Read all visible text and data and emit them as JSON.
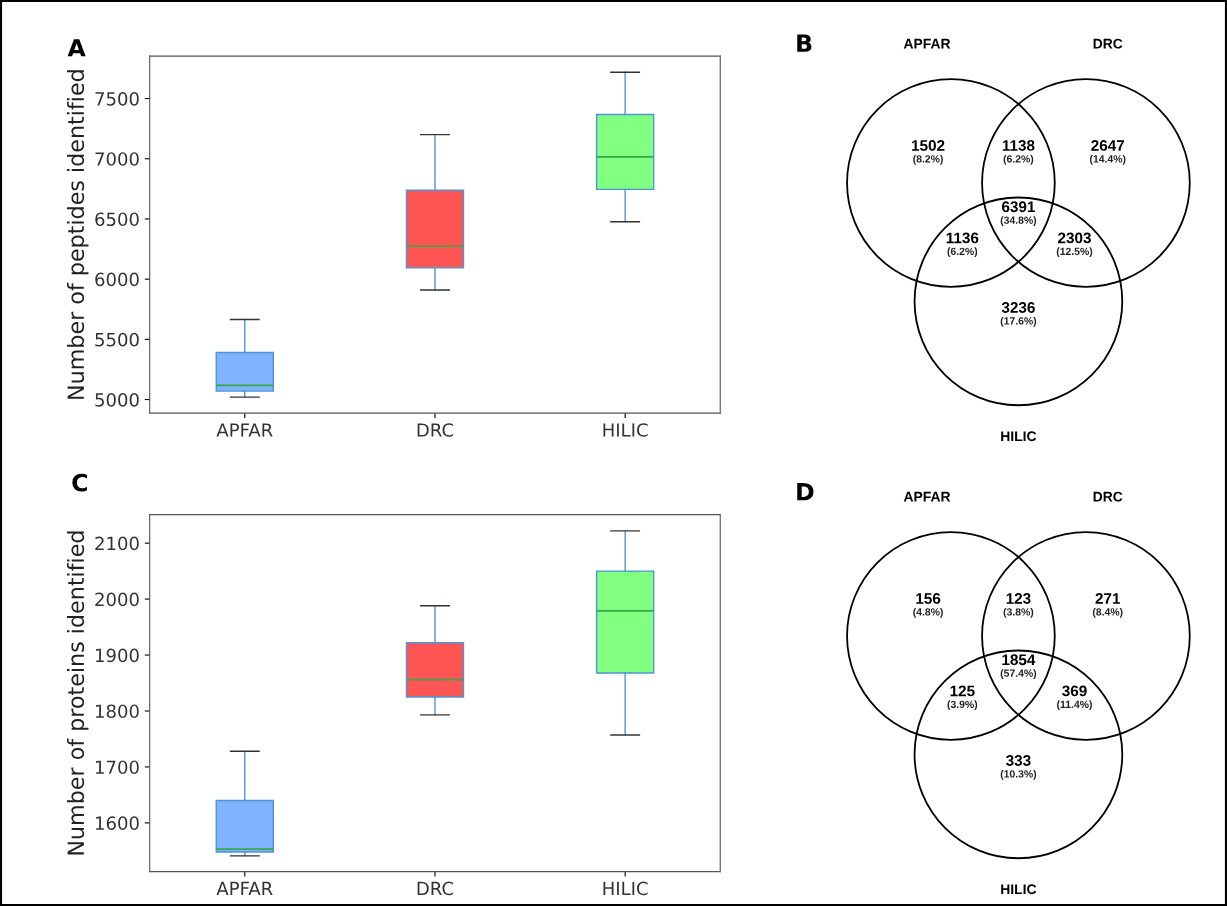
{
  "chart_data": [
    {
      "type": "box",
      "title": "A",
      "ylabel": "Number of peptides identified",
      "categories": [
        "APFAR",
        "DRC",
        "HILIC"
      ],
      "colors": [
        "#7fb2ff",
        "#ff5555",
        "#80ff80"
      ],
      "boxes": [
        {
          "low": 5020,
          "q1": 5070,
          "median": 5117,
          "q3": 5391,
          "high": 5665
        },
        {
          "low": 5910,
          "q1": 6094,
          "median": 6273,
          "q3": 6738,
          "high": 7200
        },
        {
          "low": 6477,
          "q1": 6746,
          "median": 7016,
          "q3": 7367,
          "high": 7719
        }
      ],
      "ylim": [
        4887,
        7852
      ],
      "yticks": [
        5000,
        5500,
        6000,
        6500,
        7000,
        7500
      ],
      "grid": false
    },
    {
      "type": "other",
      "title": "B",
      "annotations": [
        "APFAR",
        "DRC",
        "HILIC",
        "1502",
        "1138",
        "2647",
        "1136",
        "6391",
        "2303",
        "3236",
        "(8.2%)",
        "(6.2%)",
        "(14.4%)",
        "(6.2%)",
        "(34.8%)",
        "(12.5%)",
        "(17.6%)"
      ]
    },
    {
      "type": "box",
      "title": "C",
      "ylabel": "Number of proteins identified",
      "categories": [
        "APFAR",
        "DRC",
        "HILIC"
      ],
      "colors": [
        "#7fb2ff",
        "#ff5555",
        "#80ff80"
      ],
      "boxes": [
        {
          "low": 1541,
          "q1": 1548,
          "median": 1553,
          "q3": 1640,
          "high": 1728
        },
        {
          "low": 1793,
          "q1": 1825,
          "median": 1856,
          "q3": 1922,
          "high": 1988
        },
        {
          "low": 1757,
          "q1": 1868,
          "median": 1979,
          "q3": 2050,
          "high": 2122
        }
      ],
      "ylim": [
        1513,
        2151
      ],
      "yticks": [
        1600,
        1700,
        1800,
        1900,
        2000,
        2100
      ],
      "grid": false
    },
    {
      "type": "other",
      "title": "D",
      "annotations": [
        "APFAR",
        "DRC",
        "HILIC",
        "156",
        "123",
        "271",
        "125",
        "1854",
        "369",
        "333",
        "(4.8%)",
        "(3.8%)",
        "(8.4%)",
        "(3.9%)",
        "(57.4%)",
        "(11.4%)",
        "(10.3%)"
      ]
    }
  ]
}
